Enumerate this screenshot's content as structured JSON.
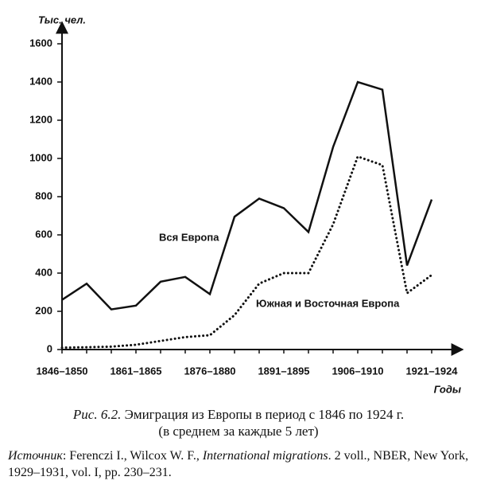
{
  "chart_data": {
    "type": "line",
    "y_label": "Тыс. чел.",
    "x_label": "Годы",
    "categories": [
      "1846–1850",
      null,
      null,
      "1861–1865",
      null,
      null,
      "1876–1880",
      null,
      null,
      "1891–1895",
      null,
      null,
      "1906–1910",
      null,
      null,
      "1921–1924"
    ],
    "series": [
      {
        "name": "Вся Европа",
        "color": "#111111",
        "style": "solid",
        "values": [
          260,
          345,
          210,
          230,
          355,
          380,
          290,
          695,
          790,
          740,
          615,
          1060,
          1400,
          1360,
          440,
          785
        ]
      },
      {
        "name": "Южная и Восточная Европа",
        "color": "#111111",
        "style": "dotted",
        "values": [
          10,
          12,
          15,
          25,
          45,
          65,
          75,
          180,
          345,
          400,
          400,
          655,
          1010,
          965,
          295,
          390
        ]
      }
    ],
    "ylim": [
      0,
      1700
    ],
    "yticks": [
      0,
      200,
      400,
      600,
      800,
      1000,
      1200,
      1400,
      1600
    ],
    "grid": false
  },
  "caption": {
    "label": "Рис. 6.2.",
    "text": " Эмиграция из Европы в период с 1846 по 1924 г.",
    "line2": "(в среднем за каждые 5 лет)"
  },
  "source": {
    "label": "Источник",
    "text1": ": Ferenczi I., Wilcox W. F., ",
    "title": "International migrations",
    "text2": ". 2 voll., NBER, New York, 1929–1931, vol. I, pp. 230–231."
  }
}
